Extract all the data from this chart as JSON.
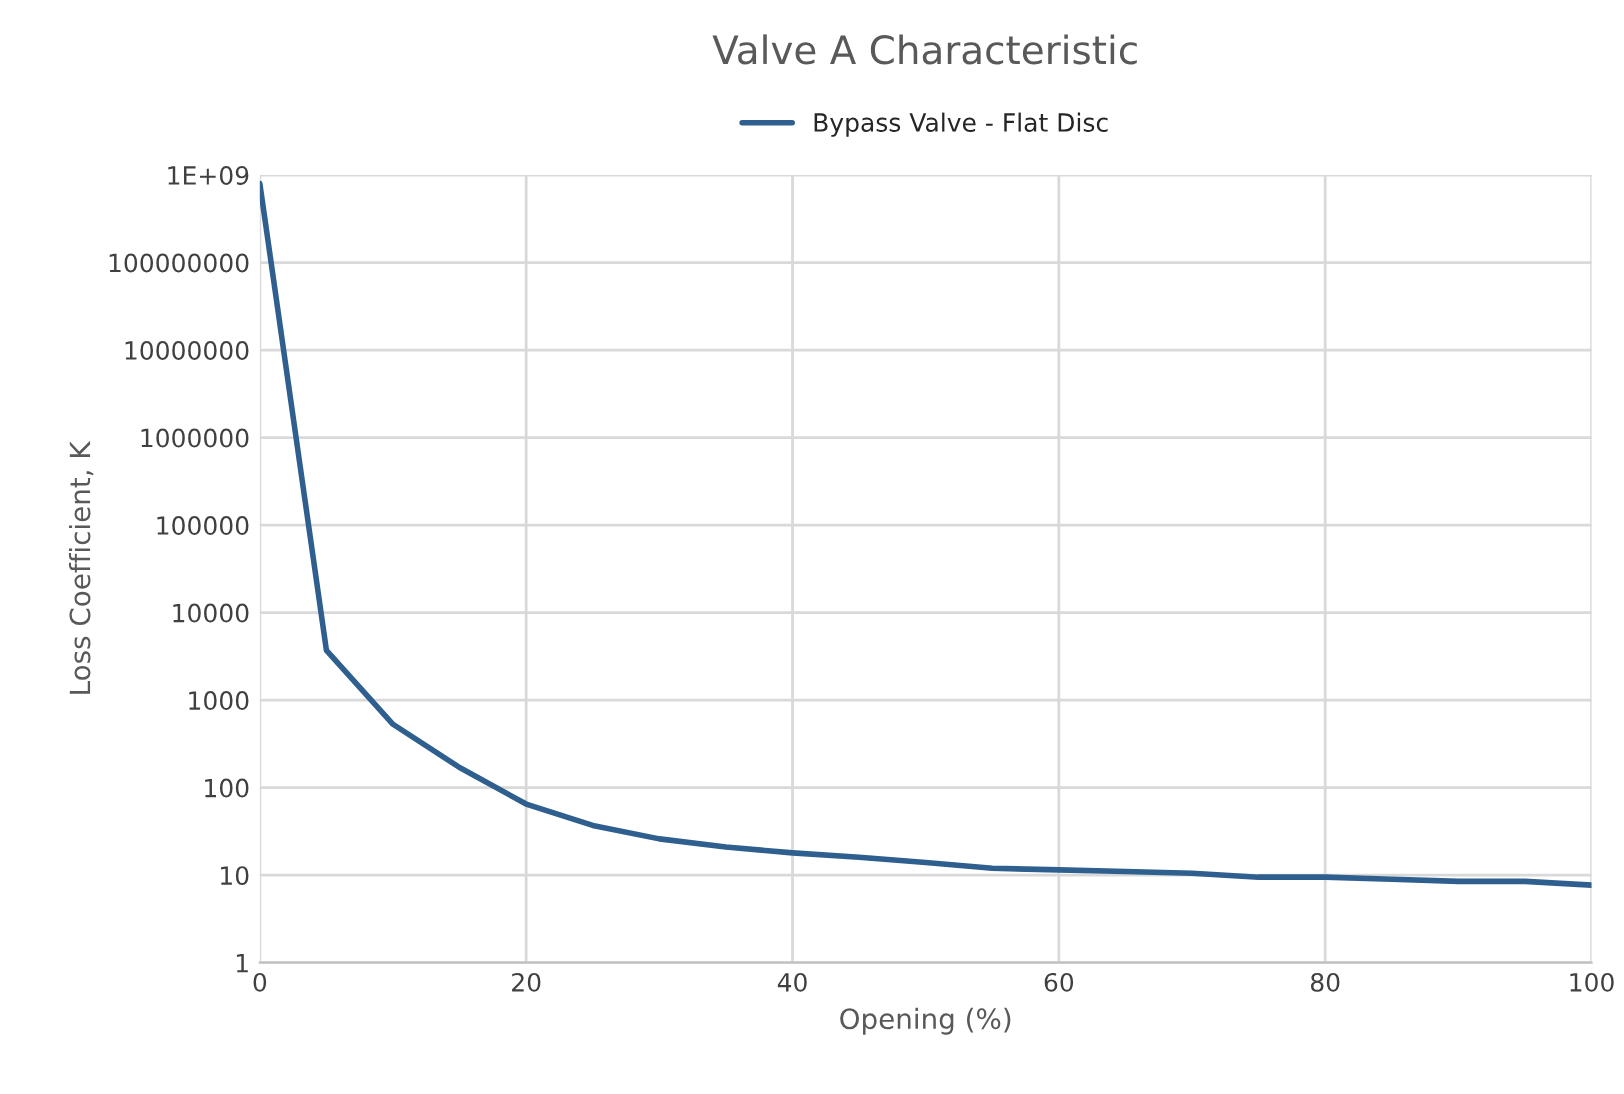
{
  "chart_data": {
    "type": "line",
    "title": "Valve A Characteristic",
    "xlabel": "Opening (%)",
    "ylabel": "Loss Coefficient, K",
    "x": [
      0,
      5,
      10,
      15,
      20,
      25,
      30,
      35,
      40,
      45,
      50,
      55,
      60,
      65,
      70,
      75,
      80,
      85,
      90,
      95,
      100
    ],
    "series": [
      {
        "name": "Bypass Valve - Flat Disc",
        "color": "#2f5f8f",
        "values": [
          800000000,
          3700,
          530,
          170,
          65,
          37,
          26,
          21,
          18,
          16,
          14,
          12,
          11.5,
          11,
          10.5,
          9.5,
          9.5,
          9,
          8.5,
          8.5,
          7.7
        ]
      }
    ],
    "log": "y",
    "xlim": [
      0,
      100
    ],
    "xticks": [
      0,
      20,
      40,
      60,
      80,
      100
    ],
    "ylim": [
      1,
      1000000000
    ],
    "yticks": [
      1,
      10,
      100,
      1000,
      10000,
      100000,
      1000000,
      10000000,
      100000000,
      {
        "value": 1000000000,
        "label": "1E+09"
      }
    ],
    "grid": true,
    "legend": "top",
    "marker": "none",
    "line_style": "solid"
  }
}
